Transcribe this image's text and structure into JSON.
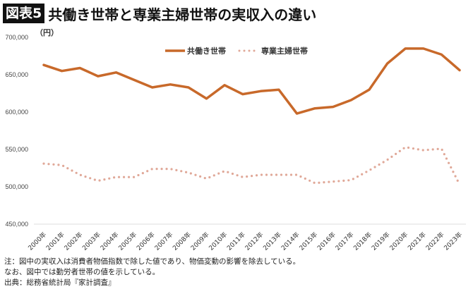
{
  "header": {
    "badge": "図表5",
    "title": "共働き世帯と専業主婦世帯の実収入の違い"
  },
  "chart_data": {
    "type": "line",
    "title": "共働き世帯と専業主婦世帯の実収入の違い",
    "ylabel": "（円）",
    "ylim": [
      450000,
      700000
    ],
    "yticks": [
      450000,
      500000,
      550000,
      600000,
      650000,
      700000
    ],
    "ytick_labels": [
      "450,000",
      "500,000",
      "550,000",
      "600,000",
      "650,000",
      "700,000"
    ],
    "categories": [
      "2000年",
      "2001年",
      "2002年",
      "2003年",
      "2004年",
      "2005年",
      "2006年",
      "2007年",
      "2008年",
      "2009年",
      "2010年",
      "2011年",
      "2012年",
      "2013年",
      "2014年",
      "2015年",
      "2016年",
      "2017年",
      "2018年",
      "2019年",
      "2020年",
      "2021年",
      "2022年",
      "2023年"
    ],
    "legend_position": "top-center",
    "grid": false,
    "series": [
      {
        "name": "共働き世帯",
        "style": "solid",
        "color": "#c8692a",
        "values": [
          663000,
          655000,
          659000,
          648000,
          653000,
          643000,
          633000,
          637000,
          633000,
          618000,
          636000,
          624000,
          628000,
          630000,
          598000,
          605000,
          607000,
          616000,
          630000,
          665000,
          685000,
          685000,
          677000,
          656000
        ]
      },
      {
        "name": "専業主婦世帯",
        "style": "dotted",
        "color": "#e0a898",
        "values": [
          531000,
          529000,
          516000,
          508000,
          513000,
          513000,
          524000,
          524000,
          519000,
          511000,
          521000,
          513000,
          516000,
          516000,
          516000,
          505000,
          507000,
          509000,
          522000,
          536000,
          553000,
          549000,
          551000,
          503000
        ]
      }
    ]
  },
  "notes": [
    "注：図中の実収入は消費者物価指数で除した値であり、物価変動の影響を除去している。",
    "なお、図中では勤労者世帯の値を示している。",
    "出典：総務省統計局『家計調査』"
  ]
}
